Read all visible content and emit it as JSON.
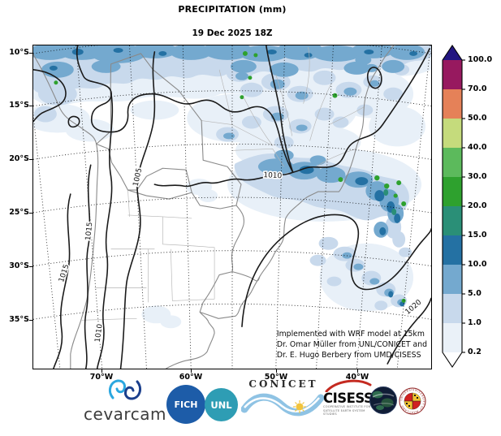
{
  "figure": {
    "title": "PRECIPITATION (mm)",
    "subtitle": "19 Dec 2025 18Z"
  },
  "map": {
    "lat_ticks": [
      "10°S",
      "15°S",
      "20°S",
      "25°S",
      "30°S",
      "35°S"
    ],
    "lon_ticks": [
      "70°W",
      "60°W",
      "50°W",
      "40°W"
    ],
    "contour_labels": [
      "1005",
      "1010",
      "1015",
      "1015",
      "1010",
      "1020"
    ],
    "annotation_lines": [
      "Implemented with WRF model at 15km",
      "Dr. Omar Müller from UNL/CONICET and",
      "Dr. E. Hugo Berbery from UMD/CISESS"
    ]
  },
  "colorbar": {
    "tick_labels": [
      "100.0",
      "70.0",
      "50.0",
      "40.0",
      "30.0",
      "20.0",
      "15.0",
      "10.0",
      "5.0",
      "1.0",
      "0.2"
    ],
    "levels_mm": [
      0.2,
      1,
      5,
      10,
      15,
      20,
      30,
      40,
      50,
      70,
      100
    ],
    "segment_colors_top_to_bottom": [
      "#97195f",
      "#e58158",
      "#c5db7c",
      "#5cba5c",
      "#2ea12e",
      "#2a8f77",
      "#2471a3",
      "#74a9cf",
      "#c8d9ec",
      "#eaf1f8"
    ],
    "over_color": "#231681",
    "under_color": "#ffffff"
  },
  "footer": {
    "cevarcam_label": "cevarcam",
    "fich_label": "FICH",
    "unl_label": "UNL",
    "conicet_label": "CONICET",
    "cisess_label": "CISESS",
    "cisess_subtext_line1": "COOPERATIVE INSTITUTE FOR",
    "cisess_subtext_line2": "SATELLITE EARTH SYSTEM STUDIES",
    "umd_ring_text": "UNIVERSITY OF MARYLAND · UNIVERSITY OF MARYLAND ·"
  },
  "colors": {
    "precip_pale": "#e8f0f8",
    "precip_light": "#c8d9ec",
    "precip_medium": "#74a9cf",
    "precip_steel": "#2471a3",
    "precip_teal": "#2a8f77",
    "precip_green": "#2ea12e",
    "contour_line": "#1a1a1a",
    "geo_border": "#8a8a8a"
  }
}
